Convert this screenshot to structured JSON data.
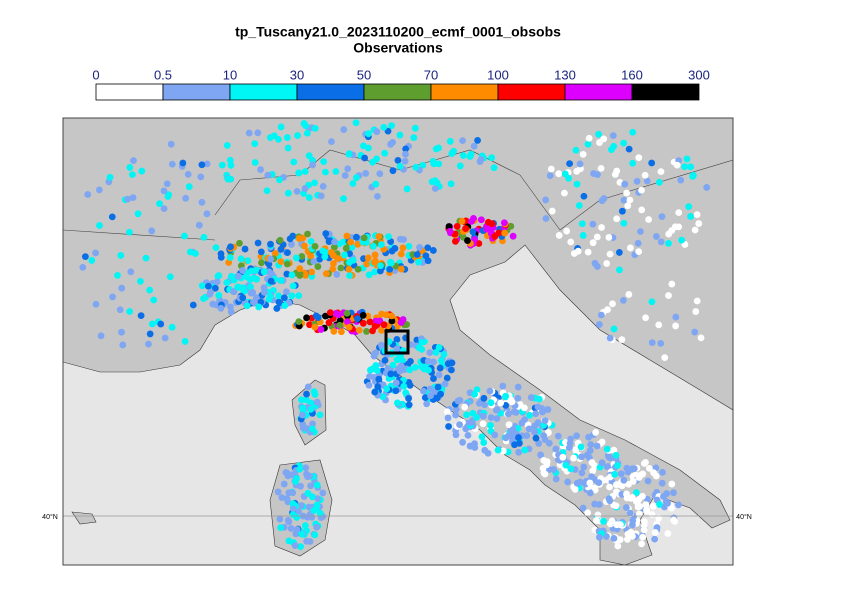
{
  "title": "tp_Tuscany21.0_2023110200_ecmf_0001_obsobs",
  "subtitle": "Observations",
  "colorbar": {
    "ticks": [
      0,
      0.5,
      10,
      30,
      50,
      70,
      100,
      130,
      160,
      300
    ],
    "colors": [
      "#ffffff",
      "#7ea6f2",
      "#00f5f5",
      "#0a6ee6",
      "#5e9e2e",
      "#ff8c00",
      "#ff0000",
      "#dd00ff",
      "#000000"
    ]
  },
  "map": {
    "lat_labels": [
      "40°N",
      "40°N"
    ],
    "sea_color": "#e6e6e6",
    "land_color": "#c6c6c6"
  }
}
